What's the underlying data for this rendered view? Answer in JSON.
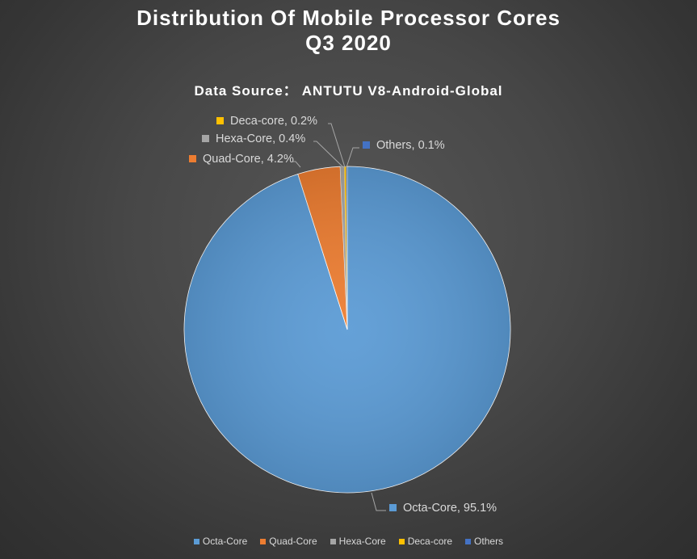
{
  "chart_data": {
    "type": "pie",
    "title": "Distribution Of Mobile Processor Cores",
    "title_line2": "Q3 2020",
    "subtitle": "Data Source： ANTUTU V8-Android-Global",
    "slices": [
      {
        "name": "Octa-Core",
        "value": 95.1,
        "label": "Octa-Core, 95.1%",
        "color": "#5b9bd5"
      },
      {
        "name": "Quad-Core",
        "value": 4.2,
        "label": "Quad-Core, 4.2%",
        "color": "#ed7d31"
      },
      {
        "name": "Hexa-Core",
        "value": 0.4,
        "label": "Hexa-Core, 0.4%",
        "color": "#a5a5a5"
      },
      {
        "name": "Deca-core",
        "value": 0.2,
        "label": "Deca-core, 0.2%",
        "color": "#ffc000"
      },
      {
        "name": "Others",
        "value": 0.1,
        "label": "Others, 0.1%",
        "color": "#4472c4"
      }
    ],
    "legend_position": "bottom"
  }
}
